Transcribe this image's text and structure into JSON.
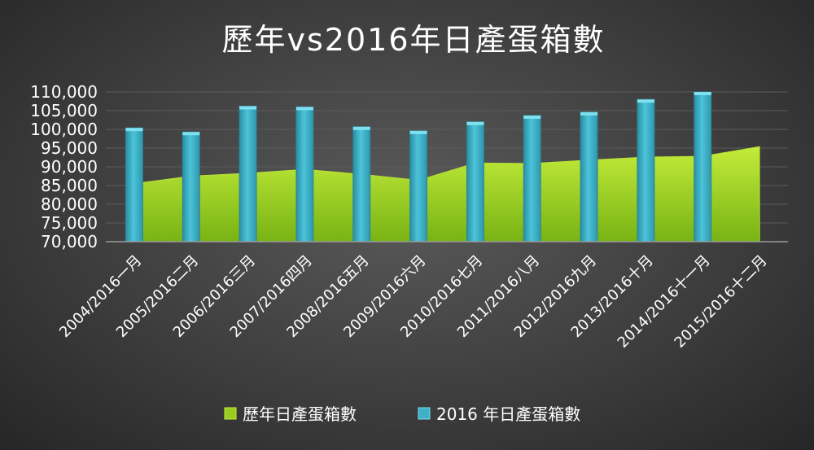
{
  "chart_data": {
    "type": "bar",
    "title": "歷年vs2016年日產蛋箱數",
    "categories": [
      "2004/2016一月",
      "2005/2016二月",
      "2006/2016三月",
      "2007/2016四月",
      "2008/2016五月",
      "2009/2016六月",
      "2010/2016七月",
      "2011/2016八月",
      "2012/2016九月",
      "2013/2016十月",
      "2014/2016十一月",
      "2015/2016十二月"
    ],
    "series": [
      {
        "name": "歷年日產蛋箱數",
        "type": "area",
        "color": "#9acd1e",
        "values": [
          85500,
          87500,
          88300,
          89300,
          88000,
          86400,
          91000,
          90900,
          91800,
          92600,
          92800,
          95400
        ]
      },
      {
        "name": "2016 年日產蛋箱數",
        "type": "bar",
        "color": "#3fb0c6",
        "values": [
          100400,
          99300,
          106200,
          106000,
          100700,
          99600,
          102000,
          103700,
          104600,
          108000,
          110000,
          null
        ]
      }
    ],
    "ylim": [
      70000,
      110000
    ],
    "yticks": [
      "70,000",
      "75,000",
      "80,000",
      "85,000",
      "90,000",
      "95,000",
      "100,000",
      "105,000",
      "110,000"
    ],
    "legend": {
      "position": "bottom"
    },
    "grid": true
  }
}
